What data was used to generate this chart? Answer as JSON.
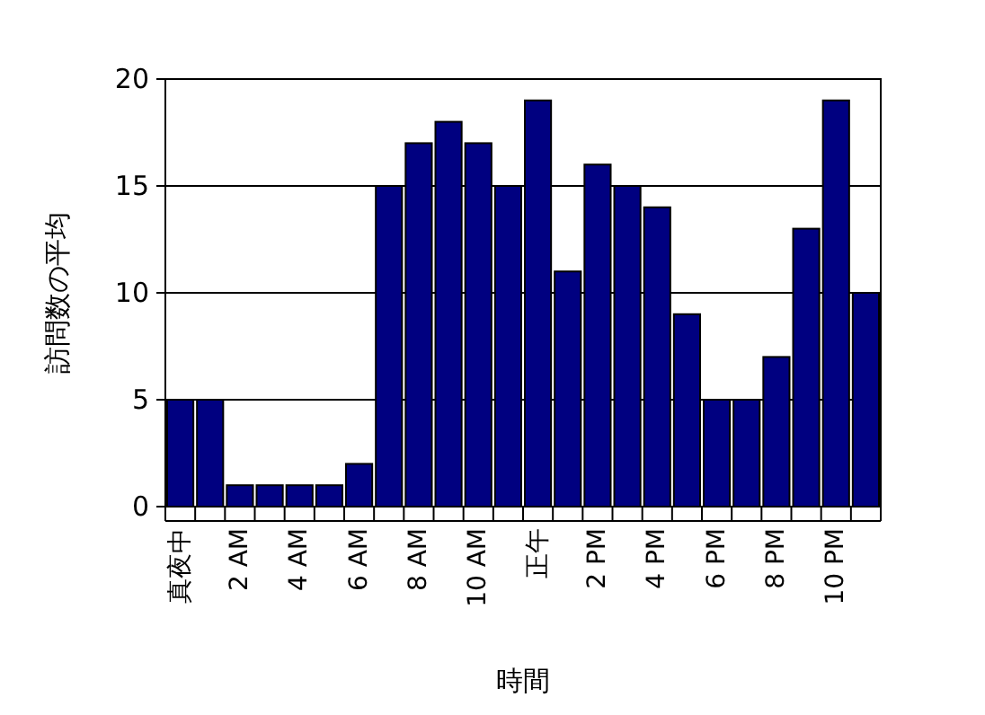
{
  "chart_data": {
    "type": "bar",
    "xlabel": "時間",
    "ylabel": "訪問数の平均",
    "categories": [
      "真夜中",
      null,
      "2 AM",
      null,
      "4 AM",
      null,
      "6 AM",
      null,
      "8 AM",
      null,
      "10 AM",
      null,
      "正午",
      null,
      "2 PM",
      null,
      "4 PM",
      null,
      "6 PM",
      null,
      "8 PM",
      null,
      "10 PM",
      null
    ],
    "values": [
      5,
      5,
      1,
      1,
      1,
      1,
      2,
      15,
      17,
      18,
      17,
      15,
      19,
      11,
      16,
      15,
      14,
      9,
      5,
      5,
      7,
      13,
      19,
      10
    ],
    "color": "#000080",
    "ylim": [
      0,
      20
    ],
    "yticks": [
      0,
      5,
      10,
      15,
      20
    ],
    "grid": "y"
  }
}
